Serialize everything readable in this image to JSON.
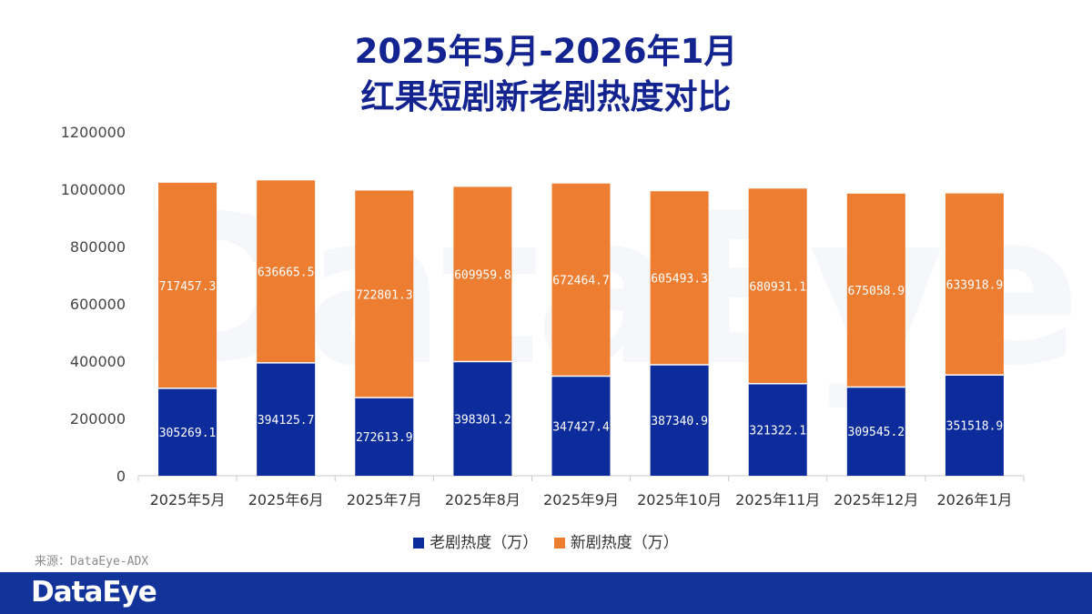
{
  "title_line1": "2025年5月-2026年1月",
  "title_line2": "红果短剧新老剧热度对比",
  "watermark": "DataEye",
  "source": "来源：DataEye-ADX",
  "footer_brand": "DataEye",
  "colors": {
    "old": "#0c2c9b",
    "new": "#ed7d31",
    "title": "#13238f",
    "footer": "#12339a"
  },
  "chart_data": {
    "type": "bar",
    "stacked": true,
    "title": "2025年5月-2026年1月 红果短剧新老剧热度对比",
    "categories": [
      "2025年5月",
      "2025年6月",
      "2025年7月",
      "2025年8月",
      "2025年9月",
      "2025年10月",
      "2025年11月",
      "2025年12月",
      "2026年1月"
    ],
    "series": [
      {
        "name": "老剧热度（万）",
        "values": [
          305269.1,
          394125.7,
          272613.9,
          398301.2,
          347427.4,
          387340.9,
          321322.1,
          309545.2,
          351518.9
        ]
      },
      {
        "name": "新剧热度（万）",
        "values": [
          717457.3,
          636665.5,
          722801.3,
          609959.8,
          672464.7,
          605493.3,
          680931.1,
          675058.9,
          633918.9
        ]
      }
    ],
    "data_labels": [
      [
        "305269.1",
        "394125.7",
        "272613.9",
        "398301.2",
        "347427.4",
        "387340.9",
        "321322.1",
        "309545.2",
        "351518.9"
      ],
      [
        "717457.3",
        "636665.5",
        "722801.3",
        "609959.8",
        "672464.7",
        "605493.3",
        "680931.1",
        "675058.9",
        "633918.9"
      ]
    ],
    "ylim": [
      0,
      1200000
    ],
    "yticks": [
      0,
      200000,
      400000,
      600000,
      800000,
      1000000,
      1200000
    ],
    "xlabel": "",
    "ylabel": "",
    "grid": false,
    "legend": "bottom-center"
  }
}
